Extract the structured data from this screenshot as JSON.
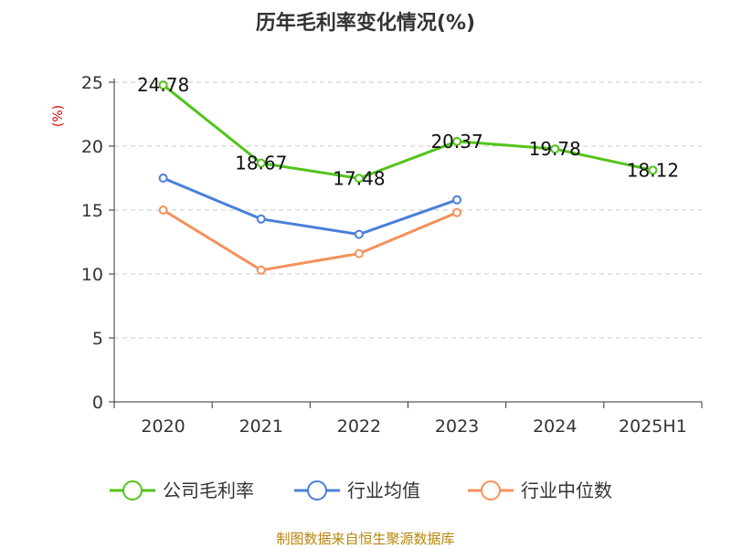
{
  "chart_data": {
    "type": "line",
    "title": "历年毛利率变化情况(%)",
    "ylabel": "(%)",
    "categories": [
      "2020",
      "2021",
      "2022",
      "2023",
      "2024",
      "2025H1"
    ],
    "yticks": [
      "0",
      "5",
      "10",
      "15",
      "20",
      "25"
    ],
    "ylim": [
      0,
      25
    ],
    "grid": true,
    "legend_position": "bottom",
    "series": [
      {
        "name": "公司毛利率",
        "color": "#52c41a",
        "values": [
          24.78,
          18.67,
          17.48,
          20.37,
          19.78,
          18.12
        ],
        "labels": [
          "24.78",
          "18.67",
          "17.48",
          "20.37",
          "19.78",
          "18.12"
        ]
      },
      {
        "name": "行业均值",
        "color": "#4a7fd9",
        "values": [
          17.5,
          14.3,
          13.1,
          15.8,
          null,
          null
        ]
      },
      {
        "name": "行业中位数",
        "color": "#f4915b",
        "values": [
          15.0,
          10.3,
          11.6,
          14.8,
          null,
          null
        ]
      }
    ]
  },
  "source": "制图数据来自恒生聚源数据库"
}
